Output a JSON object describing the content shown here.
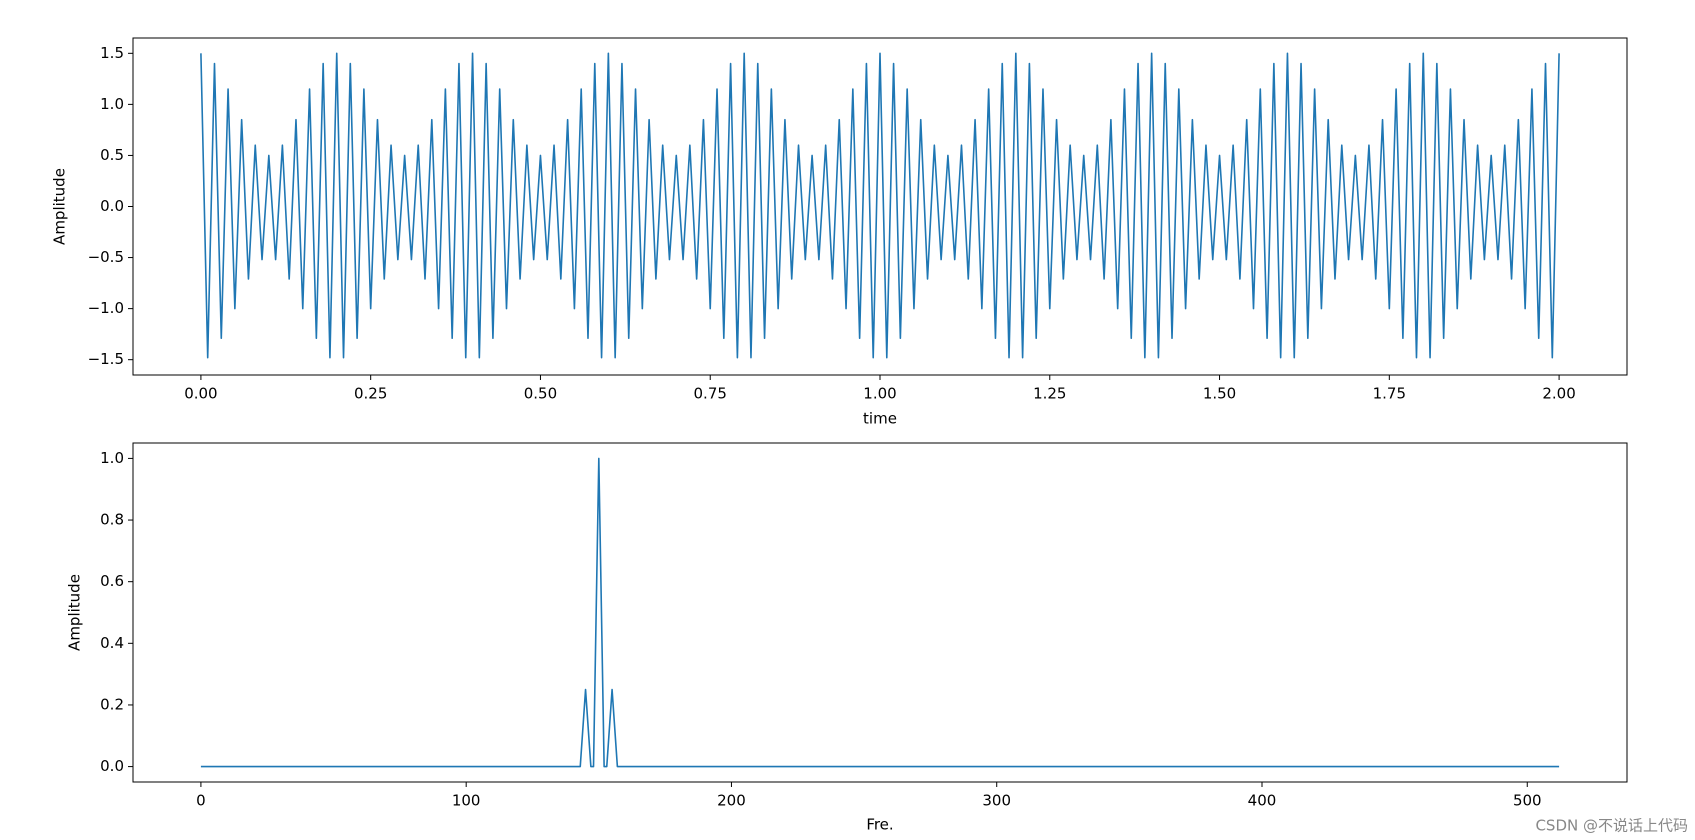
{
  "chart_data": [
    {
      "type": "line",
      "ylabel": "Amplitude",
      "xlabel": "time",
      "color": "#1f77b4",
      "x": [
        0,
        0.01,
        0.02,
        0.03,
        0.04,
        0.05,
        0.06,
        0.07,
        0.08,
        0.09,
        0.1,
        0.11,
        0.12,
        0.13,
        0.14,
        0.15,
        0.16,
        0.17,
        0.18,
        0.19,
        0.2,
        0.21,
        0.22,
        0.23,
        0.24,
        0.25,
        0.26,
        0.27,
        0.28,
        0.29,
        0.3,
        0.31,
        0.32,
        0.33,
        0.34,
        0.35,
        0.36,
        0.37,
        0.38,
        0.39,
        0.4,
        0.41,
        0.42,
        0.43,
        0.44,
        0.45,
        0.46,
        0.47,
        0.48,
        0.49,
        0.5,
        0.51,
        0.52,
        0.53,
        0.54,
        0.55,
        0.56,
        0.57,
        0.58,
        0.59,
        0.6,
        0.61,
        0.62,
        0.63,
        0.64,
        0.65,
        0.66,
        0.67,
        0.68,
        0.69,
        0.7,
        0.71,
        0.72,
        0.73,
        0.74,
        0.75,
        0.76,
        0.77,
        0.78,
        0.79,
        0.8,
        0.81,
        0.82,
        0.83,
        0.84,
        0.85,
        0.86,
        0.87,
        0.88,
        0.89,
        0.9,
        0.91,
        0.92,
        0.93,
        0.94,
        0.95,
        0.96,
        0.97,
        0.98,
        0.99,
        1,
        1.01,
        1.02,
        1.03,
        1.04,
        1.05,
        1.06,
        1.07,
        1.08,
        1.09,
        1.1,
        1.11,
        1.12,
        1.13,
        1.14,
        1.15,
        1.16,
        1.17,
        1.18,
        1.19,
        1.2,
        1.21,
        1.22,
        1.23,
        1.24,
        1.25,
        1.26,
        1.27,
        1.28,
        1.29,
        1.3,
        1.31,
        1.32,
        1.33,
        1.34,
        1.35,
        1.36,
        1.37,
        1.38,
        1.39,
        1.4,
        1.41,
        1.42,
        1.43,
        1.44,
        1.45,
        1.46,
        1.47,
        1.48,
        1.49,
        1.5,
        1.51,
        1.52,
        1.53,
        1.54,
        1.55,
        1.56,
        1.57,
        1.58,
        1.59,
        1.6,
        1.61,
        1.62,
        1.63,
        1.64,
        1.65,
        1.66,
        1.67,
        1.68,
        1.69,
        1.7,
        1.71,
        1.72,
        1.73,
        1.74,
        1.75,
        1.76,
        1.77,
        1.78,
        1.79,
        1.8,
        1.81,
        1.82,
        1.83,
        1.84,
        1.85,
        1.86,
        1.87,
        1.88,
        1.89,
        1.9,
        1.91,
        1.92,
        1.93,
        1.94,
        1.95,
        1.96,
        1.97,
        1.98,
        1.99,
        2
      ],
      "values": [
        1.5,
        -1.48,
        1.4,
        -1.29,
        1.15,
        -1,
        0.85,
        -0.71,
        0.6,
        -0.52,
        0.5,
        -0.52,
        0.6,
        -0.71,
        0.85,
        -1,
        1.15,
        -1.29,
        1.4,
        -1.48,
        1.5,
        -1.48,
        1.4,
        -1.29,
        1.15,
        -1,
        0.85,
        -0.71,
        0.6,
        -0.52,
        0.5,
        -0.52,
        0.6,
        -0.71,
        0.85,
        -1,
        1.15,
        -1.29,
        1.4,
        -1.48,
        1.5,
        -1.48,
        1.4,
        -1.29,
        1.15,
        -1,
        0.85,
        -0.71,
        0.6,
        -0.52,
        0.5,
        -0.52,
        0.6,
        -0.71,
        0.85,
        -1,
        1.15,
        -1.29,
        1.4,
        -1.48,
        1.5,
        -1.48,
        1.4,
        -1.29,
        1.15,
        -1,
        0.85,
        -0.71,
        0.6,
        -0.52,
        0.5,
        -0.52,
        0.6,
        -0.71,
        0.85,
        -1,
        1.15,
        -1.29,
        1.4,
        -1.48,
        1.5,
        -1.48,
        1.4,
        -1.29,
        1.15,
        -1,
        0.85,
        -0.71,
        0.6,
        -0.52,
        0.5,
        -0.52,
        0.6,
        -0.71,
        0.85,
        -1,
        1.15,
        -1.29,
        1.4,
        -1.48,
        1.5,
        -1.48,
        1.4,
        -1.29,
        1.15,
        -1,
        0.85,
        -0.71,
        0.6,
        -0.52,
        0.5,
        -0.52,
        0.6,
        -0.71,
        0.85,
        -1,
        1.15,
        -1.29,
        1.4,
        -1.48,
        1.5,
        -1.48,
        1.4,
        -1.29,
        1.15,
        -1,
        0.85,
        -0.71,
        0.6,
        -0.52,
        0.5,
        -0.52,
        0.6,
        -0.71,
        0.85,
        -1,
        1.15,
        -1.29,
        1.4,
        -1.48,
        1.5,
        -1.48,
        1.4,
        -1.29,
        1.15,
        -1,
        0.85,
        -0.71,
        0.6,
        -0.52,
        0.5,
        -0.52,
        0.6,
        -0.71,
        0.85,
        -1,
        1.15,
        -1.29,
        1.4,
        -1.48,
        1.5,
        -1.48,
        1.4,
        -1.29,
        1.15,
        -1,
        0.85,
        -0.71,
        0.6,
        -0.52,
        0.5,
        -0.52,
        0.6,
        -0.71,
        0.85,
        -1,
        1.15,
        -1.29,
        1.4,
        -1.48,
        1.5,
        -1.48,
        1.4,
        -1.29,
        1.15,
        -1,
        0.85,
        -0.71,
        0.6,
        -0.52,
        0.5,
        -0.52,
        0.6,
        -0.71,
        0.85,
        -1,
        1.15,
        -1.29,
        1.4,
        -1.48,
        1.5
      ],
      "xlim": [
        -0.1,
        2.1
      ],
      "xticks": [
        {
          "value": 0,
          "label": "0.00"
        },
        {
          "value": 0.25,
          "label": "0.25"
        },
        {
          "value": 0.5,
          "label": "0.50"
        },
        {
          "value": 0.75,
          "label": "0.75"
        },
        {
          "value": 1,
          "label": "1.00"
        },
        {
          "value": 1.25,
          "label": "1.25"
        },
        {
          "value": 1.5,
          "label": "1.50"
        },
        {
          "value": 1.75,
          "label": "1.75"
        },
        {
          "value": 2,
          "label": "2.00"
        }
      ],
      "ylim": [
        -1.65,
        1.65
      ],
      "yticks": [
        {
          "value": -1.5,
          "label": "−1.5"
        },
        {
          "value": -1,
          "label": "−1.0"
        },
        {
          "value": -0.5,
          "label": "−0.5"
        },
        {
          "value": 0,
          "label": "0.0"
        },
        {
          "value": 0.5,
          "label": "0.5"
        },
        {
          "value": 1,
          "label": "1.0"
        },
        {
          "value": 1.5,
          "label": "1.5"
        }
      ]
    },
    {
      "type": "line",
      "ylabel": "Amplitude",
      "xlabel": "Fre.",
      "color": "#1f77b4",
      "x": [
        0,
        143,
        145,
        147,
        148,
        150,
        152,
        153,
        155,
        157,
        512
      ],
      "values": [
        0,
        0,
        0.25,
        0,
        0,
        1,
        0,
        0,
        0.25,
        0,
        0
      ],
      "xlim": [
        -25.6,
        537.6
      ],
      "xticks": [
        0,
        100,
        200,
        300,
        400,
        500
      ],
      "ylim": [
        -0.05,
        1.05
      ],
      "yticks": [
        {
          "value": 0,
          "label": "0.0"
        },
        {
          "value": 0.2,
          "label": "0.2"
        },
        {
          "value": 0.4,
          "label": "0.4"
        },
        {
          "value": 0.6,
          "label": "0.6"
        },
        {
          "value": 0.8,
          "label": "0.8"
        },
        {
          "value": 1,
          "label": "1.0"
        }
      ]
    }
  ],
  "watermark": "CSDN @不说话上代码"
}
